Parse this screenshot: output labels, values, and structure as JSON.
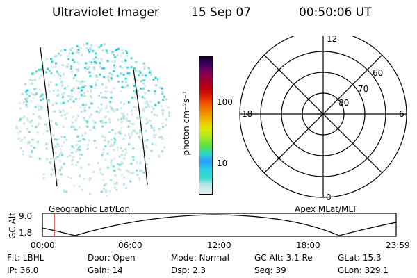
{
  "header": {
    "title": "Ultraviolet Imager",
    "date": "15 Sep 07",
    "time": "00:50:06 UT"
  },
  "colorbar": {
    "unit_label": "photon cm⁻²s⁻¹",
    "ticks": [
      "100",
      "10"
    ],
    "colors": [
      "#e8eef0",
      "#bfe6e6",
      "#38dcd0",
      "#28cfe0",
      "#2aa0ff",
      "#2ad8c0",
      "#60e040",
      "#a8e820",
      "#e0e800",
      "#f0c000",
      "#f09000",
      "#f06000",
      "#e02000",
      "#c00010",
      "#a0002a",
      "#800060",
      "#400060",
      "#0e0020"
    ]
  },
  "polar": {
    "hour_labels": [
      "12",
      "18",
      "6",
      "0"
    ],
    "lat_labels": [
      "60",
      "70",
      "80"
    ]
  },
  "labels": {
    "left": "Geographic Lat/Lon",
    "right": "Apex MLat/MLT"
  },
  "altitude_plot": {
    "y_label": "GC Alt",
    "y_ticks": [
      "9.0",
      "1.8"
    ],
    "x_ticks": [
      "00:00",
      "06:00",
      "12:00",
      "18:00",
      "23:59"
    ],
    "current_time_marker": "00:50"
  },
  "info": {
    "flt": "Flt: LBHL",
    "door": "Door: Open",
    "mode": "Mode: Normal",
    "gc_alt": "GC Alt: 3.1 Re",
    "glat": "GLat:  15.3",
    "ip": "IP: 36.0",
    "gain": "Gain: 14",
    "dsp": "Dsp:    2.3",
    "seq": "Seq: 39",
    "glon": "GLon: 329.1"
  }
}
